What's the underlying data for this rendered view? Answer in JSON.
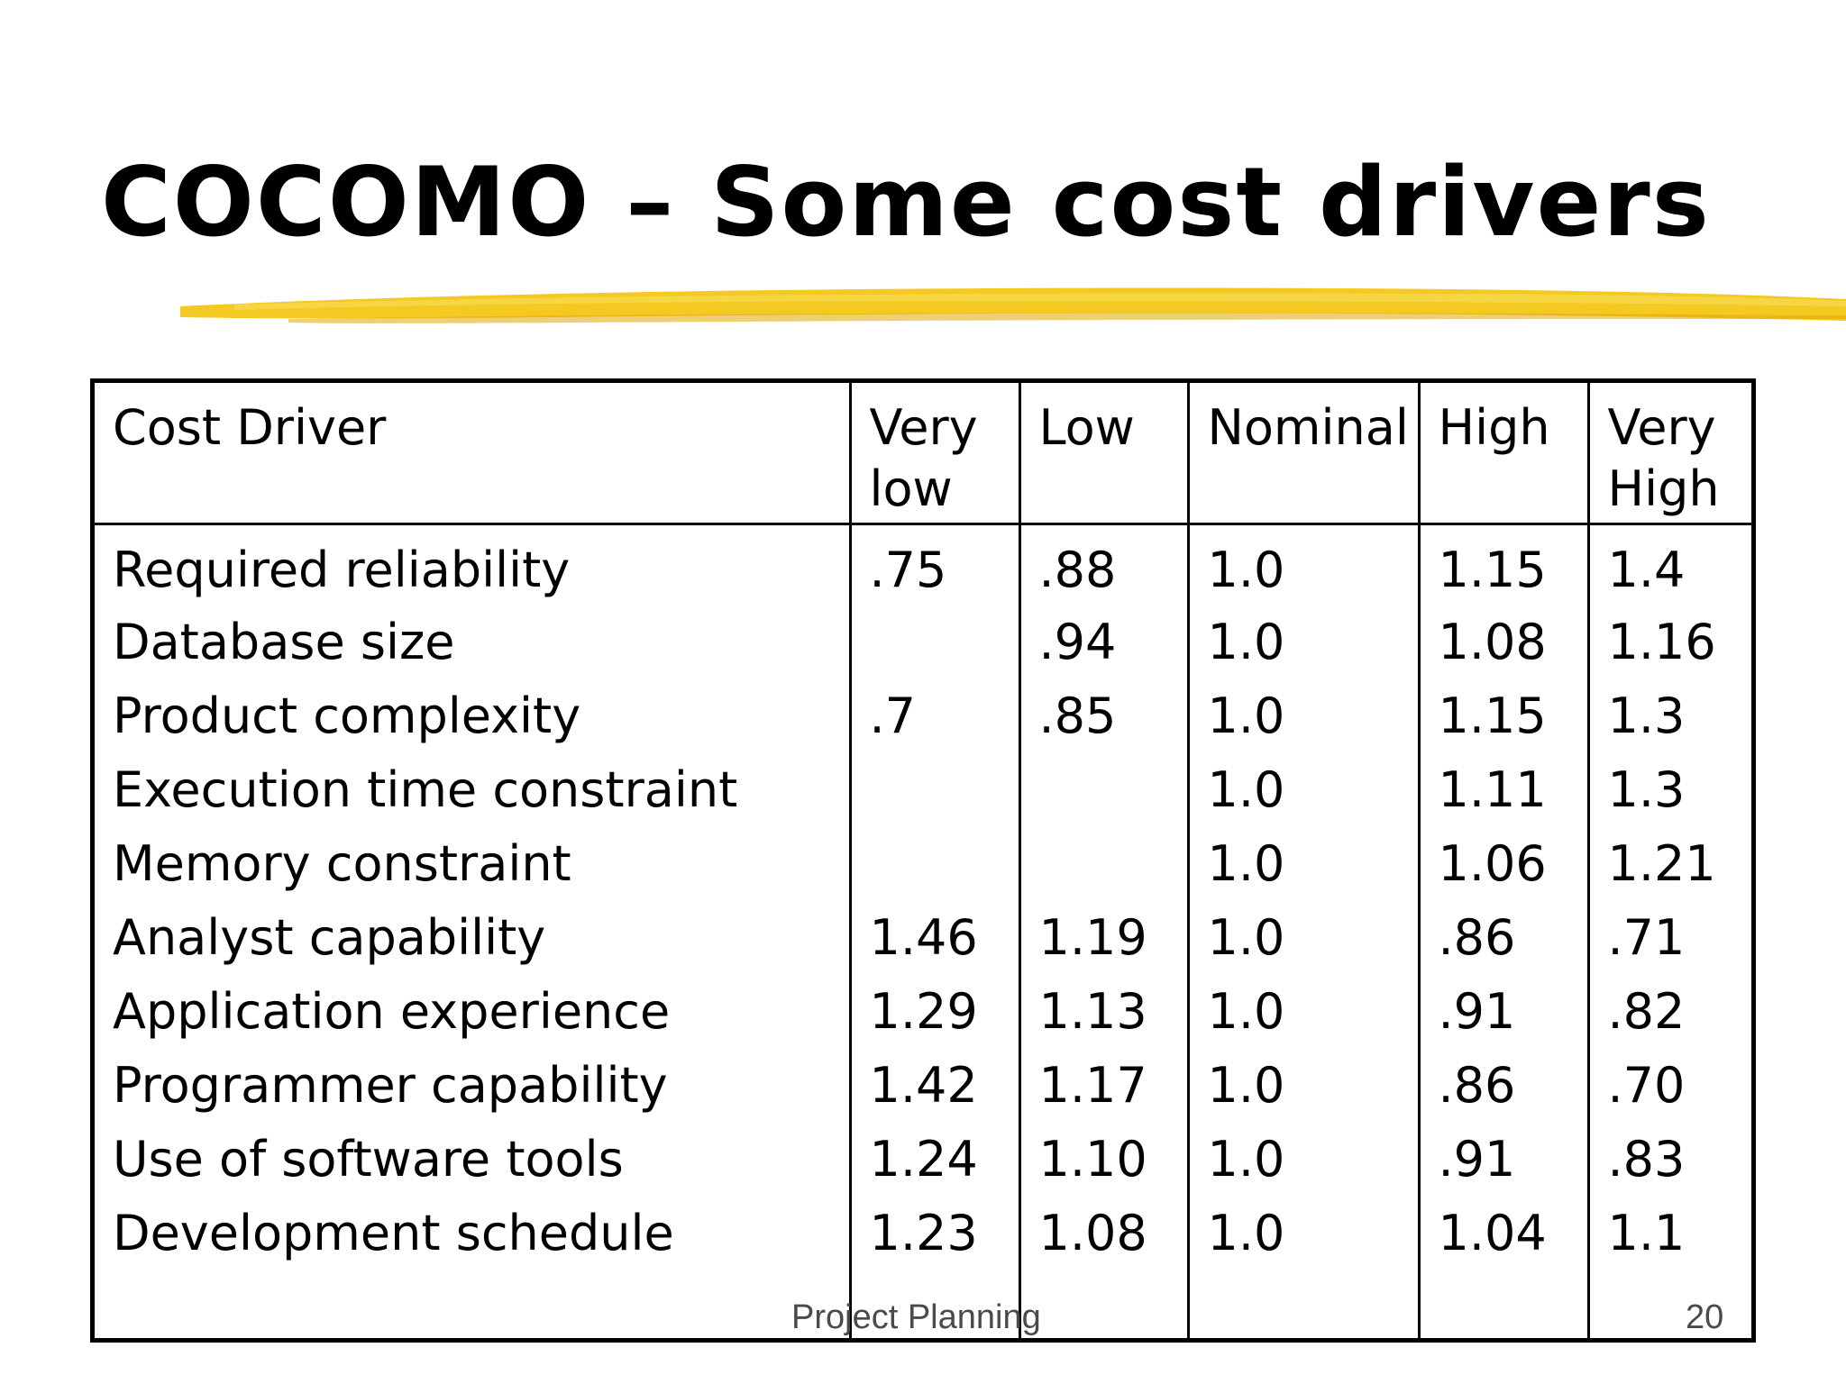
{
  "slide": {
    "title": "COCOMO – Some cost drivers",
    "footer": "Project Planning",
    "page_number": "20",
    "accent_color": "#f2c40f"
  },
  "table": {
    "headers": [
      "Cost Driver",
      "Very low",
      "Low",
      "Nominal",
      "High",
      "Very High"
    ],
    "rows": [
      [
        "Required reliability",
        ".75",
        ".88",
        "1.0",
        "1.15",
        "1.4"
      ],
      [
        "Database size",
        "",
        ".94",
        "1.0",
        "1.08",
        "1.16"
      ],
      [
        "Product complexity",
        ".7",
        ".85",
        "1.0",
        "1.15",
        "1.3"
      ],
      [
        "Execution time constraint",
        "",
        "",
        "1.0",
        "1.11",
        "1.3"
      ],
      [
        "Memory constraint",
        "",
        "",
        "1.0",
        "1.06",
        "1.21"
      ],
      [
        "Analyst capability",
        "1.46",
        "1.19",
        "1.0",
        ".86",
        ".71"
      ],
      [
        "Application experience",
        "1.29",
        "1.13",
        "1.0",
        ".91",
        ".82"
      ],
      [
        "Programmer capability",
        "1.42",
        "1.17",
        "1.0",
        ".86",
        ".70"
      ],
      [
        "Use of software tools",
        "1.24",
        "1.10",
        "1.0",
        ".91",
        ".83"
      ],
      [
        "Development schedule",
        "1.23",
        "1.08",
        "1.0",
        "1.04",
        "1.1"
      ]
    ]
  }
}
